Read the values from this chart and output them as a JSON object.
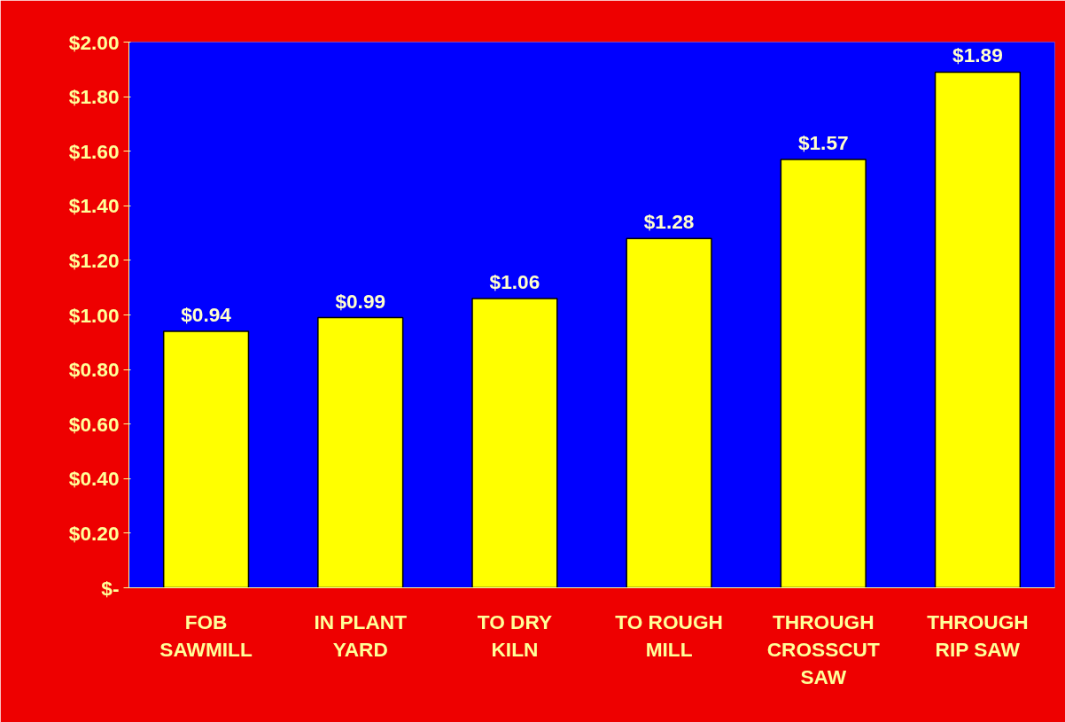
{
  "chart_data": {
    "type": "bar",
    "categories": [
      "FOB\nSAWMILL",
      "IN PLANT\nYARD",
      "TO DRY\nKILN",
      "TO ROUGH\nMILL",
      "THROUGH\nCROSSCUT\nSAW",
      "THROUGH\nRIP SAW"
    ],
    "values": [
      0.94,
      0.99,
      1.06,
      1.28,
      1.57,
      1.89
    ],
    "value_labels": [
      "$0.94",
      "$0.99",
      "$1.06",
      "$1.28",
      "$1.57",
      "$1.89"
    ],
    "color": "#ffff00",
    "ylim": [
      0,
      2.0
    ],
    "yticks": [
      {
        "value": 0,
        "label": "$-"
      },
      {
        "value": 0.2,
        "label": "$0.20"
      },
      {
        "value": 0.4,
        "label": "$0.40"
      },
      {
        "value": 0.6,
        "label": "$0.60"
      },
      {
        "value": 0.8,
        "label": "$0.80"
      },
      {
        "value": 1.0,
        "label": "$1.00"
      },
      {
        "value": 1.2,
        "label": "$1.20"
      },
      {
        "value": 1.4,
        "label": "$1.40"
      },
      {
        "value": 1.6,
        "label": "$1.60"
      },
      {
        "value": 1.8,
        "label": "$1.80"
      },
      {
        "value": 2.0,
        "label": "$2.00"
      }
    ],
    "grid": false
  }
}
